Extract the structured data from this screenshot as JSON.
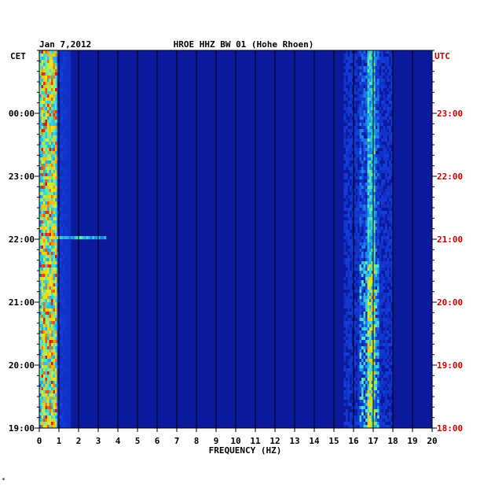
{
  "chart_data": {
    "type": "heatmap",
    "date": "Jan 7,2012",
    "title": "HROE HHZ BW 01 (Hohe Rhoen)",
    "xlabel": "FREQUENCY (HZ)",
    "left_axis_label": "CET",
    "right_axis_label": "UTC",
    "xlim": [
      0,
      20
    ],
    "x_ticks": [
      "0",
      "1",
      "2",
      "3",
      "4",
      "5",
      "6",
      "7",
      "8",
      "9",
      "10",
      "11",
      "12",
      "13",
      "14",
      "15",
      "16",
      "17",
      "18",
      "19",
      "20"
    ],
    "left_ticks": [
      "00:00",
      "23:00",
      "22:00",
      "21:00",
      "20:00",
      "19:00"
    ],
    "right_ticks": [
      "23:00",
      "22:00",
      "21:00",
      "20:00",
      "19:00",
      "18:00"
    ],
    "colors": {
      "background": "#0a1a9a",
      "low": "#0b1fa8",
      "mid": "#3fd0e0",
      "high": "#ffe000",
      "peak": "#e01000",
      "utc_text": "#cc0000"
    }
  },
  "footer": "*"
}
